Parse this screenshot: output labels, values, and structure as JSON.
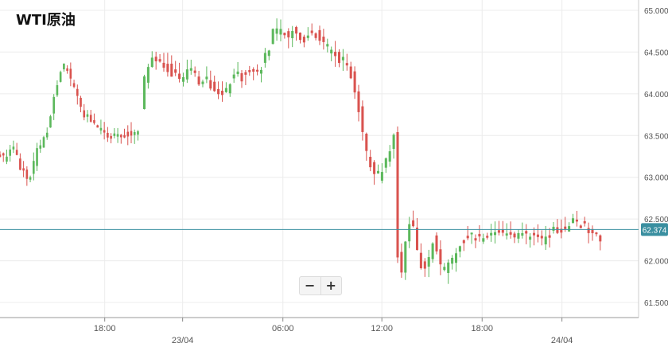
{
  "title": "WTI原油",
  "zoom": {
    "out_label": "−",
    "in_label": "+"
  },
  "chart_data": {
    "type": "candlestick",
    "title": "WTI原油",
    "instrument": "WTI原油",
    "ylim": [
      61.4,
      65.05
    ],
    "y_ticks": [
      "65.000",
      "64.500",
      "64.000",
      "63.500",
      "63.000",
      "62.500",
      "62.000",
      "61.500"
    ],
    "x_ticks": [
      {
        "label": "18:00",
        "pos": 0.164
      },
      {
        "label": "23/04",
        "pos": 0.286
      },
      {
        "label": "06:00",
        "pos": 0.443
      },
      {
        "label": "12:00",
        "pos": 0.598
      },
      {
        "label": "18:00",
        "pos": 0.755
      },
      {
        "label": "24/04",
        "pos": 0.88
      }
    ],
    "current_price": "62.374",
    "colors": {
      "up": "#5cb85c",
      "down": "#d9534f",
      "price_line": "#3a8fa0",
      "price_label_bg": "#3a8fa0",
      "grid": "#ececec",
      "axis_text": "#555555"
    },
    "segments": [
      {
        "points": [
          [
            0.0,
            63.3
          ],
          [
            0.012,
            63.22
          ],
          [
            0.025,
            63.4
          ],
          [
            0.04,
            63.05
          ],
          [
            0.053,
            63.0
          ],
          [
            0.063,
            63.35
          ],
          [
            0.078,
            63.5
          ],
          [
            0.09,
            64.0
          ],
          [
            0.103,
            64.35
          ],
          [
            0.118,
            64.15
          ],
          [
            0.132,
            63.8
          ],
          [
            0.148,
            63.65
          ],
          [
            0.16,
            63.6
          ],
          [
            0.175,
            63.5
          ],
          [
            0.19,
            63.48
          ],
          [
            0.205,
            63.52
          ],
          [
            0.216,
            63.55
          ]
        ],
        "n": 42,
        "amp": 0.09,
        "seed": 11
      },
      {
        "points": [
          [
            0.226,
            63.85
          ],
          [
            0.234,
            64.3
          ],
          [
            0.248,
            64.45
          ],
          [
            0.262,
            64.35
          ],
          [
            0.275,
            64.25
          ],
          [
            0.29,
            64.2
          ],
          [
            0.305,
            64.3
          ],
          [
            0.318,
            64.15
          ],
          [
            0.332,
            64.1
          ],
          [
            0.347,
            64.05
          ],
          [
            0.355,
            64.0
          ],
          [
            0.37,
            64.18
          ],
          [
            0.385,
            64.2
          ],
          [
            0.4,
            64.25
          ],
          [
            0.415,
            64.33
          ],
          [
            0.425,
            64.5
          ],
          [
            0.435,
            64.8
          ],
          [
            0.45,
            64.7
          ],
          [
            0.465,
            64.75
          ],
          [
            0.48,
            64.6
          ],
          [
            0.493,
            64.75
          ],
          [
            0.505,
            64.68
          ],
          [
            0.518,
            64.55
          ],
          [
            0.53,
            64.45
          ],
          [
            0.543,
            64.4
          ],
          [
            0.553,
            64.3
          ],
          [
            0.563,
            64.0
          ],
          [
            0.572,
            63.65
          ],
          [
            0.58,
            63.3
          ],
          [
            0.59,
            63.05
          ],
          [
            0.6,
            63.0
          ],
          [
            0.61,
            63.2
          ],
          [
            0.618,
            63.4
          ],
          [
            0.624,
            63.5
          ],
          [
            0.628,
            62.1
          ],
          [
            0.635,
            61.8
          ],
          [
            0.642,
            62.35
          ],
          [
            0.652,
            62.5
          ],
          [
            0.66,
            62.05
          ],
          [
            0.668,
            61.9
          ],
          [
            0.678,
            62.0
          ],
          [
            0.685,
            62.3
          ],
          [
            0.695,
            61.95
          ],
          [
            0.703,
            61.9
          ],
          [
            0.712,
            62.0
          ],
          [
            0.722,
            62.1
          ],
          [
            0.73,
            62.25
          ],
          [
            0.745,
            62.3
          ],
          [
            0.762,
            62.23
          ],
          [
            0.775,
            62.3
          ],
          [
            0.79,
            62.35
          ],
          [
            0.805,
            62.32
          ],
          [
            0.82,
            62.3
          ],
          [
            0.835,
            62.32
          ],
          [
            0.85,
            62.27
          ],
          [
            0.86,
            62.25
          ],
          [
            0.87,
            62.35
          ],
          [
            0.88,
            62.38
          ],
          [
            0.89,
            62.4
          ],
          [
            0.9,
            62.45
          ],
          [
            0.91,
            62.48
          ],
          [
            0.92,
            62.43
          ],
          [
            0.93,
            62.3
          ],
          [
            0.94,
            62.28
          ]
        ],
        "n": 118,
        "amp": 0.11,
        "seed": 37
      }
    ]
  }
}
